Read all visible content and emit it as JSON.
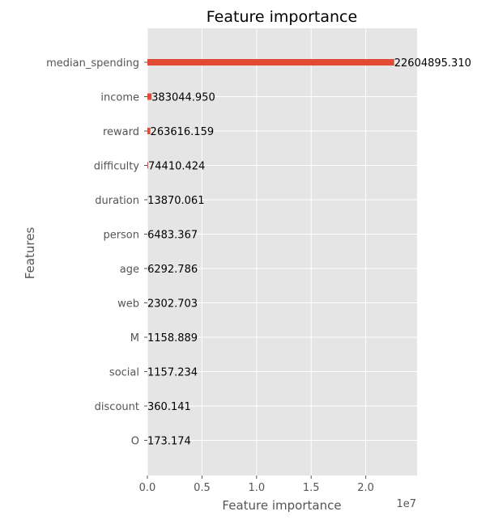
{
  "chart_data": {
    "type": "bar",
    "orientation": "horizontal",
    "title": "Feature importance",
    "xlabel": "Feature importance",
    "ylabel": "Features",
    "x_scale_label": "1e7",
    "xlim": [
      0,
      24700000
    ],
    "x_ticks": [
      {
        "value": 0,
        "label": "0.0"
      },
      {
        "value": 5000000,
        "label": "0.5"
      },
      {
        "value": 10000000,
        "label": "1.0"
      },
      {
        "value": 15000000,
        "label": "1.5"
      },
      {
        "value": 20000000,
        "label": "2.0"
      }
    ],
    "categories": [
      "median_spending",
      "income",
      "reward",
      "difficulty",
      "duration",
      "person",
      "age",
      "web",
      "M",
      "social",
      "discount",
      "O"
    ],
    "values": [
      22604895.31,
      383044.95,
      263616.159,
      74410.424,
      13870.061,
      6483.367,
      6292.786,
      2302.703,
      1158.889,
      1157.234,
      360.141,
      173.174
    ],
    "value_labels": [
      "22604895.310",
      "383044.950",
      "263616.159",
      "74410.424",
      "13870.061",
      "6483.367",
      "6292.786",
      "2302.703",
      "1158.889",
      "1157.234",
      "360.141",
      "173.174"
    ],
    "grid": true,
    "colors": {
      "bar": "#E24A33",
      "plot_background": "#E5E5E5",
      "grid": "#FFFFFF",
      "text": "#555555"
    }
  }
}
